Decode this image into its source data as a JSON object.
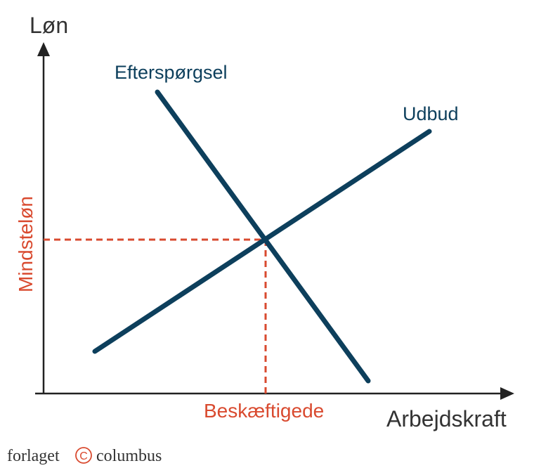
{
  "diagram": {
    "y_axis_label": "Løn",
    "x_axis_label": "Arbejdskraft",
    "demand_label": "Efterspørgsel",
    "supply_label": "Udbud",
    "min_wage_label": "Mindsteløn",
    "employed_label": "Beskæftigede"
  },
  "brand": {
    "prefix": "forlaget",
    "mark": "C",
    "suffix": "columbus"
  },
  "colors": {
    "curve": "#0d3f5c",
    "highlight": "#d94a2f",
    "axis": "#222222"
  }
}
